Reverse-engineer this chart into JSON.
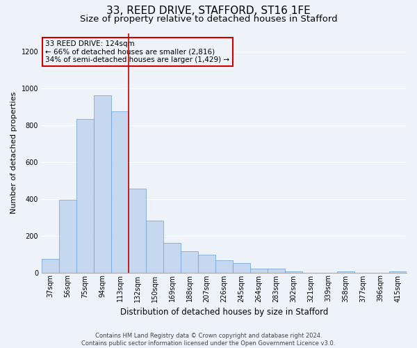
{
  "title": "33, REED DRIVE, STAFFORD, ST16 1FE",
  "subtitle": "Size of property relative to detached houses in Stafford",
  "xlabel": "Distribution of detached houses by size in Stafford",
  "ylabel": "Number of detached properties",
  "footer_line1": "Contains HM Land Registry data © Crown copyright and database right 2024.",
  "footer_line2": "Contains public sector information licensed under the Open Government Licence v3.0.",
  "annotation_line1": "33 REED DRIVE: 124sqm",
  "annotation_line2": "← 66% of detached houses are smaller (2,816)",
  "annotation_line3": "34% of semi-detached houses are larger (1,429) →",
  "categories": [
    "37sqm",
    "56sqm",
    "75sqm",
    "94sqm",
    "113sqm",
    "132sqm",
    "150sqm",
    "169sqm",
    "188sqm",
    "207sqm",
    "226sqm",
    "245sqm",
    "264sqm",
    "283sqm",
    "302sqm",
    "321sqm",
    "339sqm",
    "358sqm",
    "377sqm",
    "396sqm",
    "415sqm"
  ],
  "values": [
    75,
    395,
    835,
    960,
    875,
    455,
    280,
    160,
    115,
    95,
    65,
    50,
    20,
    20,
    5,
    0,
    0,
    5,
    0,
    0,
    5
  ],
  "bar_color": "#c5d8f0",
  "bar_edge_color": "#6a9fd8",
  "vline_color": "#cc0000",
  "vline_x_index": 4,
  "ylim": [
    0,
    1300
  ],
  "yticks": [
    0,
    200,
    400,
    600,
    800,
    1000,
    1200
  ],
  "annotation_box_edge": "#cc0000",
  "background_color": "#eef2f9",
  "grid_color": "#ffffff",
  "title_fontsize": 11,
  "subtitle_fontsize": 9.5,
  "xlabel_fontsize": 8.5,
  "ylabel_fontsize": 8,
  "tick_fontsize": 7,
  "annotation_fontsize": 7.5,
  "footer_fontsize": 6
}
